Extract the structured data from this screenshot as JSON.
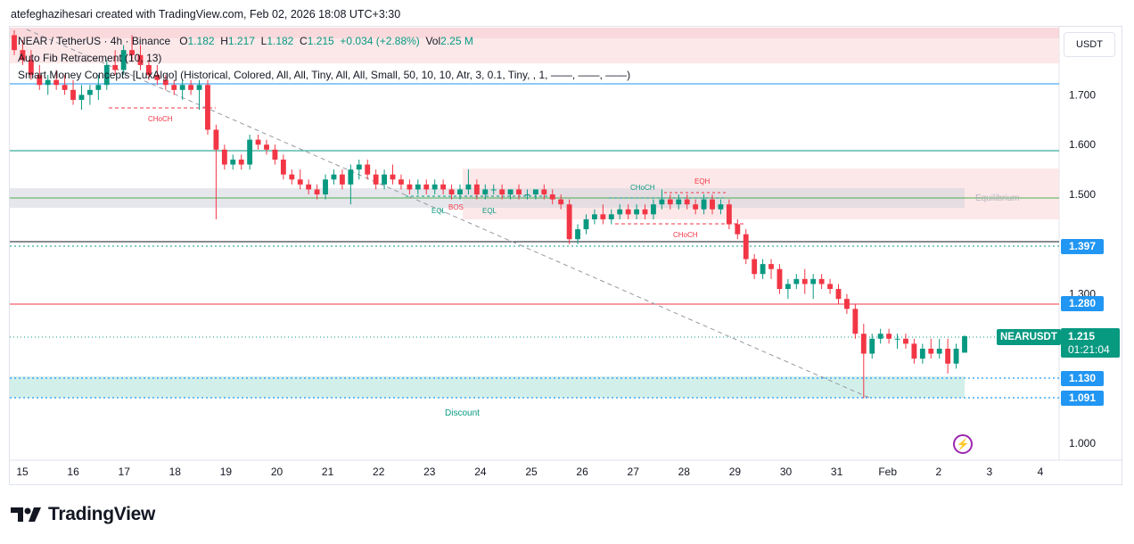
{
  "header": {
    "credit": "atefeghazihesari created with TradingView.com, Feb 02, 2026 18:08 UTC+3:30"
  },
  "legend": {
    "symbol": "NEAR / TetherUS · 4h · Binance",
    "open_label": "O",
    "open": "1.182",
    "high_label": "H",
    "high": "1.217",
    "low_label": "L",
    "low": "1.182",
    "close_label": "C",
    "close": "1.215",
    "change": "+0.034 (+2.88%)",
    "vol_label": "Vol",
    "vol": "2.25 M",
    "indicator1": "Auto Fib Retracement (10, 13)",
    "indicator2": "Smart Money Concepts [LuxAlgo] (Historical, Colored, All, All, Tiny, All, All, Small, 50, 10, 10, Atr, 3, 0.1, Tiny, , 1, ——, ——, ——)"
  },
  "currency_button": "USDT",
  "symbol_badge": "NEARUSDT",
  "last_price": {
    "price": "1.215",
    "countdown": "01:21:04"
  },
  "price_badges": [
    {
      "label": "1.397",
      "color": "#2196f3"
    },
    {
      "label": "1.280",
      "color": "#2196f3"
    },
    {
      "label": "1.130",
      "color": "#2196f3"
    },
    {
      "label": "1.091",
      "color": "#2196f3"
    }
  ],
  "annotations": {
    "choch": "CHoCH",
    "eqh": "EQH",
    "eql": "EQL",
    "bos": "BOS",
    "equilibrium": "Equilibrium",
    "discount": "Discount"
  },
  "logo_text": "TradingView",
  "colors": {
    "up": "#089981",
    "down": "#f23645",
    "accent": "#2196f3"
  },
  "chart_data": {
    "type": "candlestick",
    "ylim": [
      0.96,
      1.84
    ],
    "y_ticks": [
      "1.000",
      "1.300",
      "1.500",
      "1.600",
      "1.700"
    ],
    "x_ticks": [
      "15",
      "16",
      "17",
      "18",
      "19",
      "20",
      "21",
      "22",
      "23",
      "24",
      "25",
      "26",
      "27",
      "28",
      "29",
      "30",
      "31",
      "Feb",
      "2",
      "3",
      "4"
    ],
    "levels": [
      1.722,
      1.59,
      1.497,
      1.402,
      1.397,
      1.28,
      1.215,
      1.13,
      1.091
    ],
    "candles": [
      [
        1.82,
        1.83,
        1.78,
        1.79
      ],
      [
        1.79,
        1.81,
        1.76,
        1.77
      ],
      [
        1.77,
        1.79,
        1.73,
        1.74
      ],
      [
        1.74,
        1.76,
        1.71,
        1.72
      ],
      [
        1.72,
        1.74,
        1.7,
        1.73
      ],
      [
        1.73,
        1.75,
        1.71,
        1.72
      ],
      [
        1.72,
        1.74,
        1.7,
        1.71
      ],
      [
        1.71,
        1.73,
        1.68,
        1.69
      ],
      [
        1.69,
        1.72,
        1.67,
        1.7
      ],
      [
        1.7,
        1.72,
        1.68,
        1.71
      ],
      [
        1.71,
        1.74,
        1.69,
        1.72
      ],
      [
        1.72,
        1.77,
        1.71,
        1.76
      ],
      [
        1.76,
        1.79,
        1.74,
        1.75
      ],
      [
        1.75,
        1.8,
        1.74,
        1.79
      ],
      [
        1.79,
        1.82,
        1.77,
        1.78
      ],
      [
        1.78,
        1.8,
        1.75,
        1.76
      ],
      [
        1.76,
        1.77,
        1.73,
        1.74
      ],
      [
        1.74,
        1.76,
        1.72,
        1.73
      ],
      [
        1.73,
        1.74,
        1.71,
        1.72
      ],
      [
        1.72,
        1.73,
        1.7,
        1.71
      ],
      [
        1.71,
        1.73,
        1.69,
        1.72
      ],
      [
        1.72,
        1.73,
        1.7,
        1.71
      ],
      [
        1.71,
        1.73,
        1.67,
        1.72
      ],
      [
        1.72,
        1.73,
        1.62,
        1.63
      ],
      [
        1.63,
        1.64,
        1.45,
        1.59
      ],
      [
        1.59,
        1.6,
        1.55,
        1.56
      ],
      [
        1.56,
        1.58,
        1.55,
        1.57
      ],
      [
        1.57,
        1.58,
        1.55,
        1.56
      ],
      [
        1.56,
        1.62,
        1.55,
        1.61
      ],
      [
        1.61,
        1.62,
        1.59,
        1.6
      ],
      [
        1.6,
        1.61,
        1.58,
        1.59
      ],
      [
        1.59,
        1.6,
        1.56,
        1.57
      ],
      [
        1.57,
        1.58,
        1.53,
        1.54
      ],
      [
        1.54,
        1.55,
        1.52,
        1.53
      ],
      [
        1.53,
        1.55,
        1.51,
        1.52
      ],
      [
        1.52,
        1.53,
        1.5,
        1.51
      ],
      [
        1.51,
        1.52,
        1.49,
        1.5
      ],
      [
        1.5,
        1.54,
        1.49,
        1.53
      ],
      [
        1.53,
        1.55,
        1.52,
        1.54
      ],
      [
        1.54,
        1.55,
        1.51,
        1.52
      ],
      [
        1.52,
        1.56,
        1.48,
        1.55
      ],
      [
        1.55,
        1.57,
        1.53,
        1.56
      ],
      [
        1.56,
        1.57,
        1.53,
        1.54
      ],
      [
        1.54,
        1.55,
        1.51,
        1.52
      ],
      [
        1.52,
        1.55,
        1.51,
        1.54
      ],
      [
        1.54,
        1.56,
        1.52,
        1.53
      ],
      [
        1.53,
        1.54,
        1.51,
        1.52
      ],
      [
        1.52,
        1.53,
        1.5,
        1.51
      ],
      [
        1.51,
        1.53,
        1.5,
        1.52
      ],
      [
        1.52,
        1.53,
        1.5,
        1.51
      ],
      [
        1.51,
        1.53,
        1.5,
        1.52
      ],
      [
        1.52,
        1.53,
        1.5,
        1.51
      ],
      [
        1.51,
        1.52,
        1.49,
        1.5
      ],
      [
        1.5,
        1.52,
        1.49,
        1.51
      ],
      [
        1.51,
        1.55,
        1.5,
        1.52
      ],
      [
        1.52,
        1.53,
        1.49,
        1.5
      ],
      [
        1.5,
        1.52,
        1.49,
        1.51
      ],
      [
        1.51,
        1.52,
        1.5,
        1.51
      ],
      [
        1.51,
        1.52,
        1.49,
        1.5
      ],
      [
        1.5,
        1.51,
        1.49,
        1.51
      ],
      [
        1.51,
        1.52,
        1.49,
        1.5
      ],
      [
        1.5,
        1.51,
        1.49,
        1.5
      ],
      [
        1.5,
        1.51,
        1.49,
        1.51
      ],
      [
        1.51,
        1.52,
        1.49,
        1.5
      ],
      [
        1.5,
        1.51,
        1.48,
        1.49
      ],
      [
        1.49,
        1.5,
        1.47,
        1.48
      ],
      [
        1.48,
        1.49,
        1.4,
        1.41
      ],
      [
        1.41,
        1.44,
        1.4,
        1.43
      ],
      [
        1.43,
        1.46,
        1.42,
        1.45
      ],
      [
        1.45,
        1.47,
        1.44,
        1.46
      ],
      [
        1.46,
        1.48,
        1.44,
        1.45
      ],
      [
        1.45,
        1.47,
        1.44,
        1.46
      ],
      [
        1.46,
        1.48,
        1.45,
        1.47
      ],
      [
        1.47,
        1.48,
        1.45,
        1.46
      ],
      [
        1.46,
        1.48,
        1.45,
        1.47
      ],
      [
        1.47,
        1.48,
        1.45,
        1.46
      ],
      [
        1.46,
        1.49,
        1.45,
        1.48
      ],
      [
        1.48,
        1.51,
        1.47,
        1.49
      ],
      [
        1.49,
        1.5,
        1.47,
        1.48
      ],
      [
        1.48,
        1.5,
        1.47,
        1.49
      ],
      [
        1.49,
        1.5,
        1.47,
        1.48
      ],
      [
        1.48,
        1.49,
        1.46,
        1.47
      ],
      [
        1.47,
        1.5,
        1.46,
        1.49
      ],
      [
        1.49,
        1.5,
        1.46,
        1.47
      ],
      [
        1.47,
        1.49,
        1.46,
        1.48
      ],
      [
        1.48,
        1.49,
        1.43,
        1.44
      ],
      [
        1.44,
        1.45,
        1.41,
        1.42
      ],
      [
        1.42,
        1.43,
        1.36,
        1.37
      ],
      [
        1.37,
        1.38,
        1.33,
        1.34
      ],
      [
        1.34,
        1.37,
        1.33,
        1.36
      ],
      [
        1.36,
        1.37,
        1.33,
        1.35
      ],
      [
        1.35,
        1.36,
        1.3,
        1.31
      ],
      [
        1.31,
        1.33,
        1.29,
        1.32
      ],
      [
        1.32,
        1.34,
        1.31,
        1.33
      ],
      [
        1.33,
        1.35,
        1.3,
        1.32
      ],
      [
        1.32,
        1.34,
        1.29,
        1.33
      ],
      [
        1.33,
        1.34,
        1.31,
        1.32
      ],
      [
        1.32,
        1.33,
        1.3,
        1.31
      ],
      [
        1.31,
        1.32,
        1.28,
        1.29
      ],
      [
        1.29,
        1.3,
        1.26,
        1.27
      ],
      [
        1.27,
        1.28,
        1.21,
        1.22
      ],
      [
        1.22,
        1.24,
        1.09,
        1.18
      ],
      [
        1.18,
        1.22,
        1.17,
        1.21
      ],
      [
        1.21,
        1.23,
        1.2,
        1.22
      ],
      [
        1.22,
        1.23,
        1.2,
        1.21
      ],
      [
        1.21,
        1.22,
        1.19,
        1.21
      ],
      [
        1.21,
        1.22,
        1.19,
        1.2
      ],
      [
        1.2,
        1.21,
        1.16,
        1.17
      ],
      [
        1.17,
        1.2,
        1.16,
        1.19
      ],
      [
        1.19,
        1.21,
        1.17,
        1.18
      ],
      [
        1.18,
        1.21,
        1.17,
        1.19
      ],
      [
        1.19,
        1.21,
        1.14,
        1.16
      ],
      [
        1.16,
        1.2,
        1.15,
        1.19
      ],
      [
        1.182,
        1.217,
        1.182,
        1.215
      ]
    ]
  }
}
